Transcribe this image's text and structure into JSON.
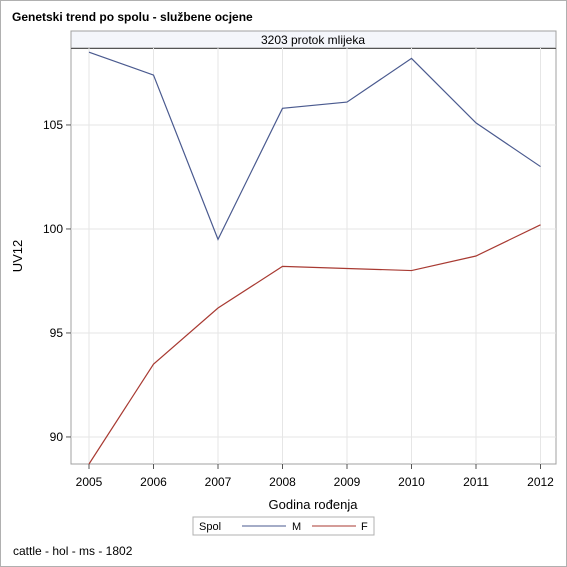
{
  "chart_data": {
    "type": "line",
    "title": "Genetski trend po spolu - službene ocjene",
    "panel_label": "3203 protok mlijeka",
    "xlabel": "Godina rođenja",
    "ylabel": "UV12",
    "x": [
      2005,
      2006,
      2007,
      2008,
      2009,
      2010,
      2011,
      2012
    ],
    "x_ticks": [
      "2005",
      "2006",
      "2007",
      "2008",
      "2009",
      "2010",
      "2011",
      "2012"
    ],
    "y_ticks": [
      "90",
      "95",
      "100",
      "105"
    ],
    "ylim": [
      88.7,
      108.7
    ],
    "grid": true,
    "legend": {
      "title": "Spol",
      "placement": "bottom",
      "entries": [
        "M",
        "F"
      ]
    },
    "series": [
      {
        "name": "M",
        "color": "#4a5a8f",
        "values": [
          108.5,
          107.4,
          99.5,
          105.8,
          106.1,
          108.2,
          105.1,
          103.0
        ]
      },
      {
        "name": "F",
        "color": "#a83a32",
        "values": [
          88.7,
          93.5,
          96.2,
          98.2,
          98.1,
          98.0,
          98.7,
          100.2
        ]
      }
    ],
    "footnote": "cattle - hol - ms - 1802"
  }
}
